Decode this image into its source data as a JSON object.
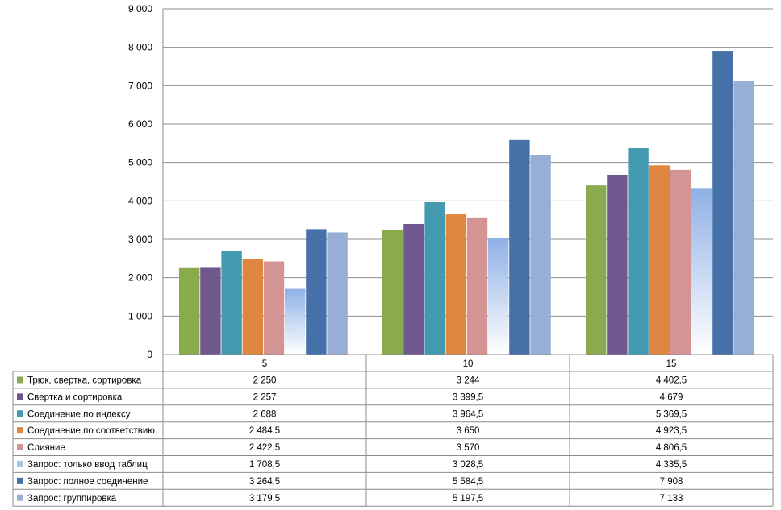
{
  "chart_data": {
    "type": "bar",
    "categories": [
      "5",
      "10",
      "15"
    ],
    "ylim": [
      0,
      9000
    ],
    "yticks": [
      "0",
      "1 000",
      "2 000",
      "3 000",
      "4 000",
      "5 000",
      "6 000",
      "7 000",
      "8 000",
      "9 000"
    ],
    "grid": true,
    "legend": "data table below chart",
    "series": [
      {
        "name": "Трюк, свертка, сортировка",
        "color": "#8aaa4e",
        "values": [
          2250,
          3244,
          4402.5
        ],
        "labels": [
          "2 250",
          "3 244",
          "4 402,5"
        ]
      },
      {
        "name": "Свертка и сортировка",
        "color": "#70578e",
        "values": [
          2257,
          3399.5,
          4679
        ],
        "labels": [
          "2 257",
          "3 399,5",
          "4 679"
        ]
      },
      {
        "name": "Соединение по индексу",
        "color": "#4399b0",
        "values": [
          2688,
          3964.5,
          5369.5
        ],
        "labels": [
          "2 688",
          "3 964,5",
          "5 369,5"
        ]
      },
      {
        "name": "Соединение по соответствию",
        "color": "#df8641",
        "values": [
          2484.5,
          3650,
          4923.5
        ],
        "labels": [
          "2 484,5",
          "3 650",
          "4 923,5"
        ]
      },
      {
        "name": "Слияние",
        "color": "#d49494",
        "values": [
          2422.5,
          3570,
          4806.5
        ],
        "labels": [
          "2 422,5",
          "3 570",
          "4 806,5"
        ]
      },
      {
        "name": "Запрос: только ввод таблиц",
        "color": "#9cb9e8",
        "gradient": true,
        "values": [
          1708.5,
          3028.5,
          4335.5
        ],
        "labels": [
          "1 708,5",
          "3 028,5",
          "4 335,5"
        ]
      },
      {
        "name": "Запрос: полное соединение",
        "color": "#4671a8",
        "values": [
          3264.5,
          5584.5,
          7908
        ],
        "labels": [
          "3 264,5",
          "5 584,5",
          "7 908"
        ]
      },
      {
        "name": "Запрос: группировка",
        "color": "#97aed6",
        "values": [
          3179.5,
          5197.5,
          7133
        ],
        "labels": [
          "3 179,5",
          "5 197,5",
          "7 133"
        ]
      }
    ]
  }
}
